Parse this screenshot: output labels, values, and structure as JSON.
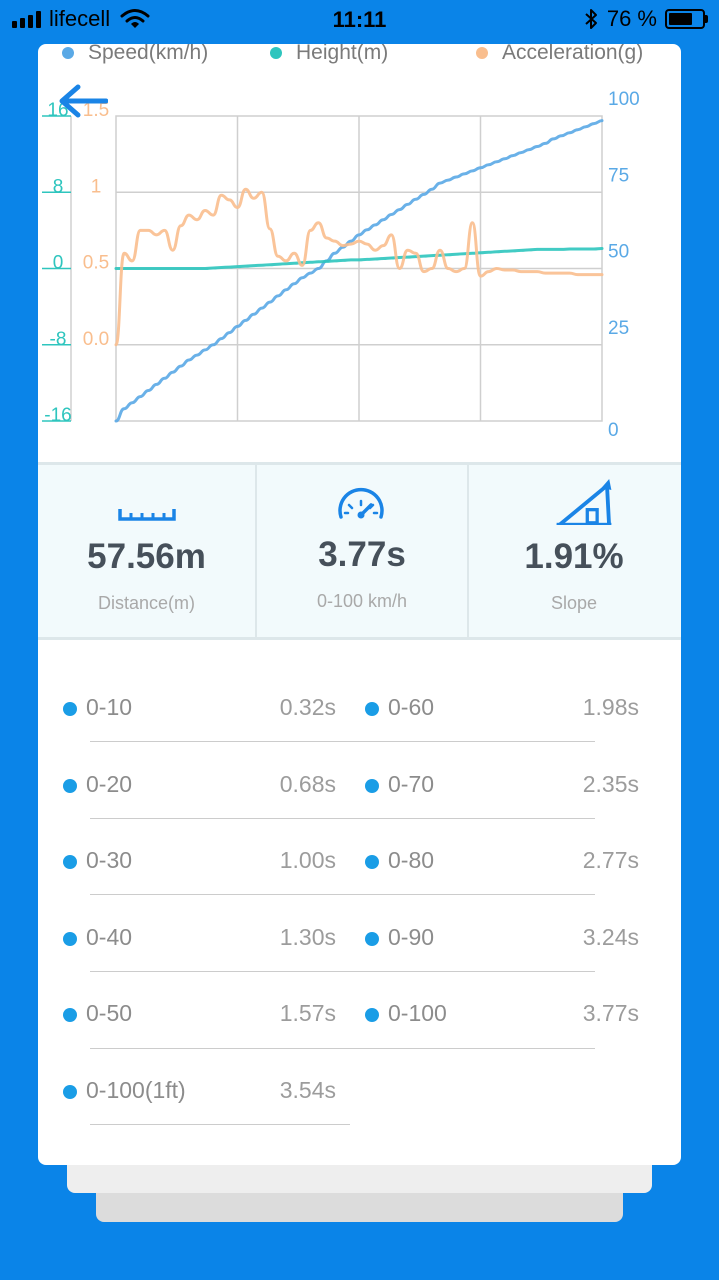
{
  "status_bar": {
    "carrier": "lifecell",
    "time": "11:11",
    "battery_percent": "76 %",
    "battery_level": 0.76
  },
  "legend": [
    {
      "label": "Speed(km/h)",
      "color": "#5aa9e6"
    },
    {
      "label": "Height(m)",
      "color": "#2ec5be"
    },
    {
      "label": "Acceleration(g)",
      "color": "#f9be8e"
    }
  ],
  "chart_data": {
    "type": "line",
    "x": [
      0,
      1,
      2,
      3,
      4,
      5,
      6,
      7,
      8,
      9,
      10,
      11,
      12,
      13,
      14,
      15,
      16,
      17,
      18,
      19,
      20,
      21,
      22,
      23,
      24,
      25,
      26,
      27,
      28,
      29,
      30,
      31,
      32,
      33,
      34,
      35,
      36,
      37,
      38,
      39,
      40,
      41,
      42,
      43,
      44,
      45,
      46,
      47,
      48,
      49,
      50,
      51,
      52,
      53,
      54,
      55,
      56,
      57,
      58,
      59,
      60
    ],
    "axes": {
      "height_left": {
        "ticks": [
          "16",
          "8",
          "0",
          "-8",
          "-16"
        ],
        "range": [
          -16,
          16
        ],
        "color": "#2ec5be"
      },
      "acceleration_left": {
        "ticks": [
          "1.5",
          "1",
          "0.5",
          "0.0"
        ],
        "range": [
          0,
          1.5
        ],
        "color": "#f9be8e"
      },
      "speed_right": {
        "ticks": [
          "100",
          "75",
          "50",
          "25",
          "0"
        ],
        "range": [
          0,
          100
        ],
        "color": "#5aa9e6"
      }
    },
    "grid": true,
    "series": [
      {
        "name": "Speed(km/h)",
        "axis": "speed_right",
        "color": "#5aa9e6",
        "values": [
          0,
          4,
          6,
          8,
          10,
          12,
          14,
          16,
          18,
          20,
          21.6,
          23.3,
          25,
          27,
          29,
          31,
          33,
          35,
          37,
          39,
          41,
          43,
          45,
          47,
          48.5,
          50,
          52.5,
          55,
          57,
          59,
          61,
          62.7,
          64.3,
          66,
          67.7,
          69.3,
          71,
          72.7,
          74.3,
          76,
          78,
          79,
          80,
          81,
          82,
          83,
          84,
          85,
          86,
          87,
          88,
          89,
          90,
          91,
          92.5,
          93.5,
          94.5,
          95.5,
          96.5,
          97.5,
          98.5
        ]
      },
      {
        "name": "Height(m)",
        "axis": "height_left",
        "color": "#2ec5be",
        "values": [
          0,
          0,
          0,
          0,
          0,
          0,
          0,
          0,
          0,
          0,
          0,
          0,
          0.05,
          0.1,
          0.15,
          0.2,
          0.25,
          0.3,
          0.35,
          0.4,
          0.45,
          0.5,
          0.55,
          0.6,
          0.65,
          0.7,
          0.75,
          0.8,
          0.85,
          0.9,
          0.9,
          0.95,
          1,
          1.05,
          1.1,
          1.15,
          1.2,
          1.25,
          1.3,
          1.35,
          1.4,
          1.45,
          1.5,
          1.55,
          1.6,
          1.65,
          1.7,
          1.75,
          1.8,
          1.85,
          1.9,
          1.95,
          2,
          2,
          2,
          2,
          2.05,
          2.05,
          2.05,
          2.05,
          2.1
        ]
      },
      {
        "name": "Acceleration(g)",
        "axis": "acceleration_left",
        "color": "#f9be8e",
        "values": [
          0,
          0.6,
          0.55,
          0.75,
          0.75,
          0.72,
          0.75,
          0.62,
          0.78,
          0.85,
          0.82,
          0.88,
          0.85,
          0.98,
          0.95,
          0.9,
          1.02,
          0.96,
          1,
          0.76,
          0.58,
          0.55,
          0.6,
          0.52,
          0.75,
          0.8,
          0.7,
          0.68,
          0.65,
          0.66,
          0.68,
          0.66,
          0.62,
          0.65,
          0.72,
          0.5,
          0.62,
          0.6,
          0.48,
          0.5,
          0.62,
          0.5,
          0.48,
          0.5,
          0.8,
          0.45,
          0.48,
          0.5,
          0.49,
          0.49,
          0.48,
          0.48,
          0.48,
          0.47,
          0.47,
          0.47,
          0.47,
          0.46,
          0.46,
          0.46,
          0.46
        ]
      }
    ]
  },
  "stats": [
    {
      "icon": "ruler-icon",
      "value": "57.56m",
      "label": "Distance(m)"
    },
    {
      "icon": "speedometer-icon",
      "value": "3.77s",
      "label": "0-100 km/h"
    },
    {
      "icon": "slope-icon",
      "value": "1.91%",
      "label": "Slope"
    }
  ],
  "times": {
    "left": [
      {
        "range": "0-10",
        "time": "0.32s"
      },
      {
        "range": "0-20",
        "time": "0.68s"
      },
      {
        "range": "0-30",
        "time": "1.00s"
      },
      {
        "range": "0-40",
        "time": "1.30s"
      },
      {
        "range": "0-50",
        "time": "1.57s"
      },
      {
        "range": "0-100(1ft)",
        "time": "3.54s"
      }
    ],
    "right": [
      {
        "range": "0-60",
        "time": "1.98s"
      },
      {
        "range": "0-70",
        "time": "2.35s"
      },
      {
        "range": "0-80",
        "time": "2.77s"
      },
      {
        "range": "0-90",
        "time": "3.24s"
      },
      {
        "range": "0-100",
        "time": "3.77s"
      }
    ]
  }
}
